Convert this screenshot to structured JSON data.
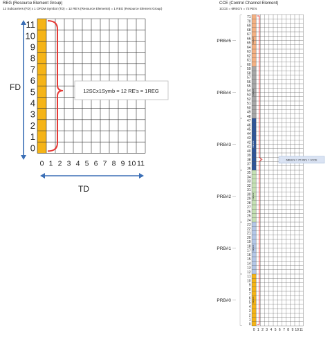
{
  "reg": {
    "title": "REG (Resource Element Group)",
    "subtitle": "12 Subcarriers (FD) x 1 OFDM Symbol (TD) = 12 RE's (Resource Elements)  = 1 REG (Resource Element Group)",
    "row_labels": [
      "0",
      "1",
      "2",
      "3",
      "4",
      "5",
      "6",
      "7",
      "8",
      "9",
      "10",
      "11"
    ],
    "col_labels": [
      "0",
      "1",
      "2",
      "3",
      "4",
      "5",
      "6",
      "7",
      "8",
      "9",
      "10",
      "11"
    ],
    "fd_label": "FD",
    "td_label": "TD",
    "callout": "12SCx1Symb = 12 RE's = 1REG",
    "highlight_color": "#f5b417",
    "bracket_color": "#e53935",
    "arrow_color": "#3b6fb6"
  },
  "cce": {
    "title": "CCE (Control Channel Element)",
    "subtitle": "1CCE = 6REG's = 72 RE's",
    "row_labels": [
      "0",
      "1",
      "2",
      "3",
      "4",
      "5",
      "6",
      "7",
      "8",
      "9",
      "10",
      "11",
      "12",
      "13",
      "14",
      "15",
      "16",
      "17",
      "18",
      "19",
      "20",
      "21",
      "22",
      "23",
      "24",
      "25",
      "26",
      "27",
      "28",
      "29",
      "30",
      "31",
      "32",
      "33",
      "34",
      "35",
      "36",
      "37",
      "38",
      "39",
      "40",
      "41",
      "42",
      "43",
      "44",
      "45",
      "46",
      "47",
      "48",
      "49",
      "50",
      "51",
      "52",
      "53",
      "54",
      "55",
      "56",
      "57",
      "58",
      "59",
      "60",
      "61",
      "62",
      "63",
      "64",
      "65",
      "66",
      "67",
      "68",
      "69",
      "70",
      "71"
    ],
    "col_labels": [
      "0",
      "1",
      "2",
      "3",
      "4",
      "5",
      "6",
      "7",
      "8",
      "9",
      "10",
      "11"
    ],
    "prbs": [
      {
        "label": "PRB#0",
        "color": "#f5b417",
        "inner": "REG#0"
      },
      {
        "label": "PRB#1",
        "color": "#b4c7e7",
        "inner": "REG#1"
      },
      {
        "label": "PRB#2",
        "color": "#c5e0b4",
        "inner": "REG#2"
      },
      {
        "label": "PRB#3",
        "color": "#2f5597",
        "inner": "REG#3"
      },
      {
        "label": "PRB#4",
        "color": "#a6a6a6",
        "inner": "REG#4"
      },
      {
        "label": "PRB#5",
        "color": "#f4b183",
        "inner": "REG#5"
      }
    ],
    "callout": "6REG's = 72 RE's = 1CCE",
    "callout_bg": "#dae3f3"
  }
}
